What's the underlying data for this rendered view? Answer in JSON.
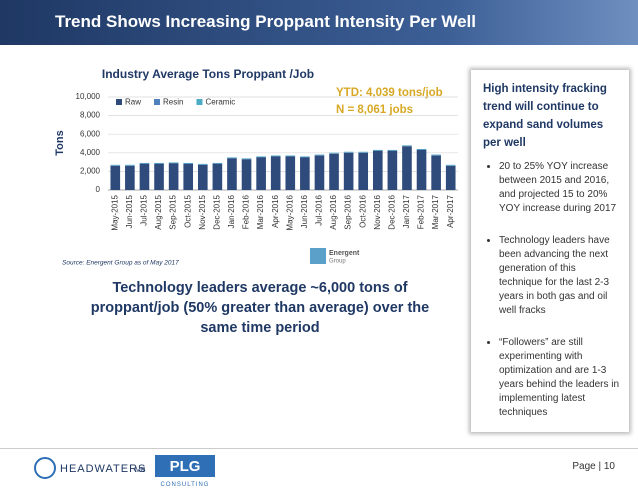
{
  "header": {
    "title": "Trend Shows Increasing Proppant Intensity Per Well"
  },
  "chart_data": {
    "type": "stacked_bar",
    "title": "Industry Average Tons Proppant /Job",
    "y_label": "Tons",
    "categories": [
      "May-2015",
      "Jun-2015",
      "Jul-2015",
      "Aug-2015",
      "Sep-2015",
      "Oct-2015",
      "Nov-2015",
      "Dec-2015",
      "Jan-2016",
      "Feb-2016",
      "Mar-2016",
      "Apr-2016",
      "May-2016",
      "Jun-2016",
      "Jul-2016",
      "Aug-2016",
      "Sep-2016",
      "Oct-2016",
      "Nov-2016",
      "Dec-2016",
      "Jan-2017",
      "Feb-2017",
      "Mar-2017",
      "Apr-2017"
    ],
    "series": [
      {
        "name": "Raw",
        "color": "#2f4b7c",
        "values": [
          2600,
          2600,
          2800,
          2800,
          2850,
          2800,
          2700,
          2800,
          3400,
          3300,
          3500,
          3600,
          3600,
          3500,
          3700,
          3900,
          4000,
          4000,
          4200,
          4200,
          4700,
          4300,
          3700,
          2600
        ]
      },
      {
        "name": "Resin",
        "color": "#4f81bd",
        "values": [
          50,
          50,
          50,
          50,
          50,
          50,
          50,
          50,
          50,
          50,
          50,
          50,
          50,
          50,
          50,
          50,
          50,
          50,
          50,
          50,
          50,
          50,
          50,
          50
        ]
      },
      {
        "name": "Ceramic",
        "color": "#4bacc6",
        "values": [
          60,
          60,
          60,
          60,
          60,
          60,
          60,
          60,
          60,
          60,
          60,
          60,
          60,
          60,
          60,
          60,
          60,
          60,
          60,
          60,
          60,
          60,
          60,
          60
        ]
      }
    ],
    "ylim": [
      0,
      10000
    ],
    "yticks": [
      0,
      {
        "value": 2000,
        "label": "2,000"
      },
      {
        "value": 4000,
        "label": "4,000"
      },
      {
        "value": 6000,
        "label": "6,000"
      },
      {
        "value": 8000,
        "label": "8,000"
      },
      {
        "value": 10000,
        "label": "10,000"
      }
    ],
    "grid": true,
    "legend": "top-left",
    "annotations": [
      "YTD: 4,039 tons/job",
      "N = 8,061 jobs"
    ],
    "source": "Source:  Energent Group as of May 2017"
  },
  "logo": [
    "Energent",
    "Group"
  ],
  "callout": "Technology leaders average  ~6,000 tons of proppant/job (50% greater than average)  over the same time period",
  "sidebar": {
    "heading": "High intensity fracking trend will continue to expand sand volumes per well",
    "bullets": [
      "20 to 25% YOY increase between 2015 and 2016, and projected 15 to 20% YOY increase during 2017",
      "Technology leaders have been advancing the next generation of this technique for the last 2-3 years in both gas and oil well fracks",
      "“Followers” are still experimenting with optimization and are 1-3 years behind the leaders in implementing latest techniques"
    ]
  },
  "footer": {
    "logo1": "HEADWATERS",
    "logo1b": "MB",
    "logo2": "PLG",
    "logo2b": "CONSULTING",
    "page": "Page | 10"
  }
}
